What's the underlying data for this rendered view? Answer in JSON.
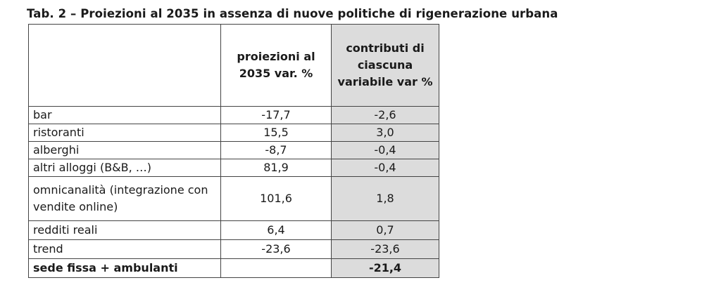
{
  "title": "Tab. 2 – Proiezioni al 2035 in assenza di nuove politiche di rigenerazione urbana",
  "table": {
    "headers": [
      "",
      "proiezioni al 2035 var. %",
      "contributi di ciascuna variabile var %"
    ],
    "rows": [
      {
        "label": "bar",
        "proiezioni": "-17,7",
        "contributi": "-2,6"
      },
      {
        "label": "ristoranti",
        "proiezioni": "15,5",
        "contributi": "3,0"
      },
      {
        "label": "alberghi",
        "proiezioni": "-8,7",
        "contributi": "-0,4"
      },
      {
        "label": "altri alloggi (B&B, …)",
        "proiezioni": "81,9",
        "contributi": "-0,4"
      },
      {
        "label": "omnicanalità (integrazione con vendite online)",
        "proiezioni": "101,6",
        "contributi": "1,8"
      },
      {
        "label": "redditi reali",
        "proiezioni": "6,4",
        "contributi": "0,7"
      },
      {
        "label": "trend",
        "proiezioni": "-23,6",
        "contributi": "-23,6"
      }
    ],
    "total": {
      "label": "sede fissa + ambulanti",
      "proiezioni": "",
      "contributi": "-21,4"
    }
  },
  "colors": {
    "shaded_column": "#dcdcdc",
    "border": "#444444"
  }
}
